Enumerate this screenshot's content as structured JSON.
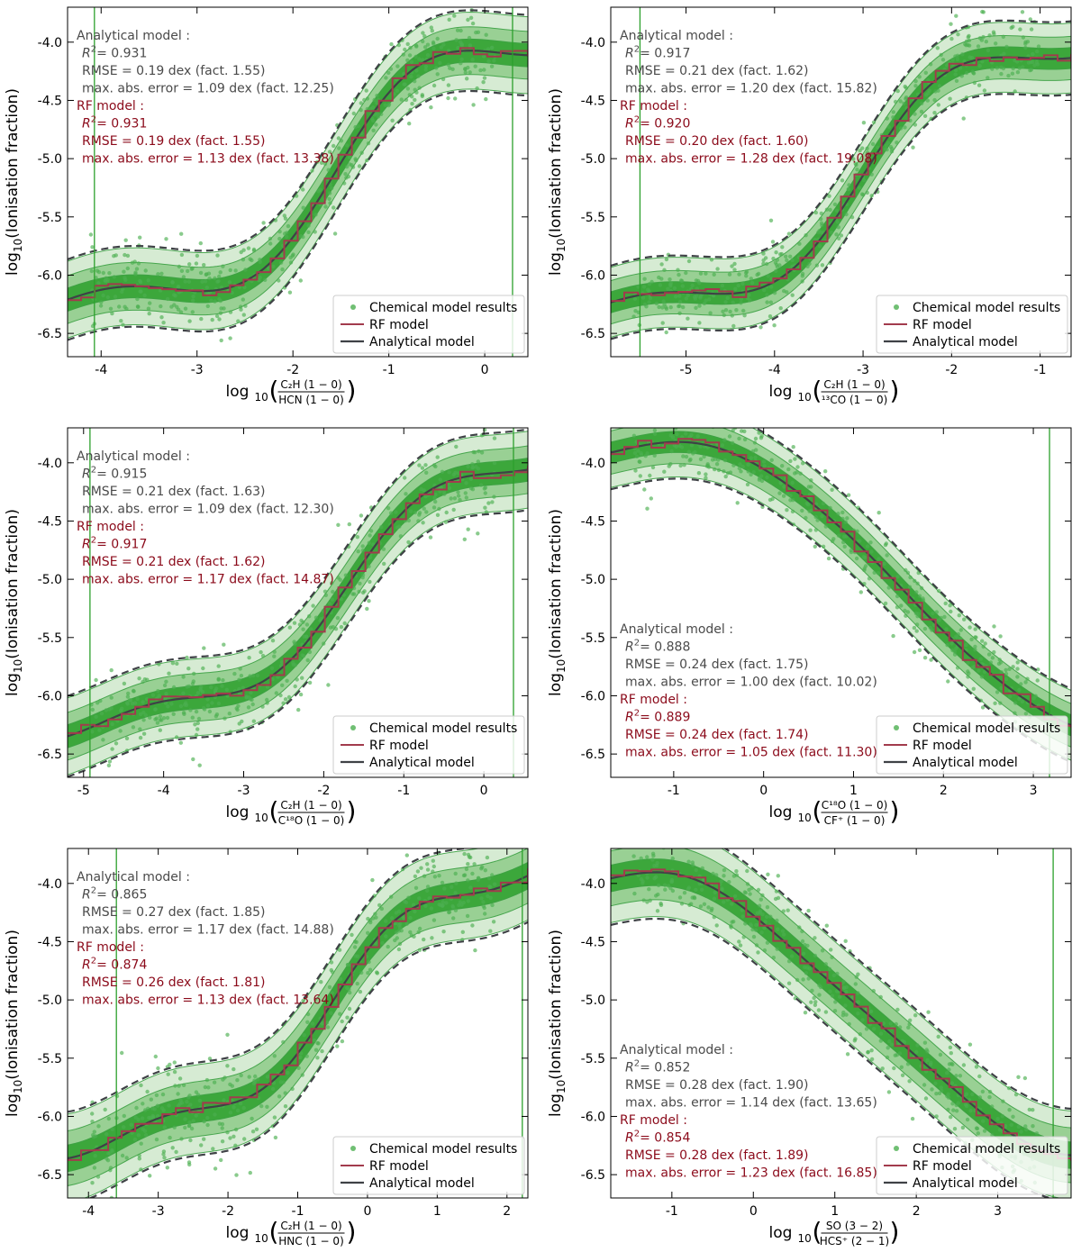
{
  "common": {
    "ylabel_main": "log",
    "ylabel_sub": "10",
    "ylabel_rest": "(Ionisation fraction)",
    "xlabel_main": "log",
    "xlabel_sub": "10",
    "legend": [
      "Chemical model results",
      "RF model",
      "Analytical model"
    ],
    "analytical_header": "Analytical model :",
    "rf_header": "RF model :",
    "r2_label": "R",
    "r2_sup": "2",
    "colors": {
      "points": "#4caf50",
      "contour_light": "#cfe8cc",
      "contour_mid": "#8fcc8a",
      "contour_dark": "#2ca02c",
      "rf": "#a23b4d",
      "analytical": "#3f4246",
      "stats_analytical": "#4a4a4a",
      "stats_rf": "#8b0a1a",
      "vline": "#2ca02c"
    }
  },
  "chart_data": [
    {
      "type": "scatter",
      "title": "",
      "xlabel_num": "C₂H (1 − 0)",
      "xlabel_den": "HCN (1 − 0)",
      "xlim": [
        -4.35,
        0.45
      ],
      "ylim": [
        -6.7,
        -3.7
      ],
      "xticks": [
        "-4",
        "-3",
        "-2",
        "-1",
        "0"
      ],
      "xtick_values": [
        -4,
        -3,
        -2,
        -1,
        0
      ],
      "yticks": [
        "-4.0",
        "-4.5",
        "-5.0",
        "-5.5",
        "-6.0",
        "-6.5"
      ],
      "ytick_values": [
        -4.0,
        -4.5,
        -5.0,
        -5.5,
        -6.0,
        -6.5
      ],
      "vlines": [
        -4.07,
        0.29
      ],
      "trend": "up",
      "curve": {
        "L": -6.28,
        "H": -3.93,
        "c": -1.55,
        "w": 0.55,
        "a": 0.14,
        "k": 2.1
      },
      "band": 0.33,
      "stats_pos": "top",
      "analytical": {
        "r2": "= 0.931",
        "rmse": "RMSE  = 0.19 dex (fact. 1.55)",
        "maxerr": "max. abs. error  = 1.09 dex (fact. 12.25)"
      },
      "rf": {
        "r2": "= 0.931",
        "rmse": "RMSE  = 0.19 dex (fact. 1.55)",
        "maxerr": "max. abs. error  = 1.13 dex (fact. 13.38)"
      }
    },
    {
      "type": "scatter",
      "title": "",
      "xlabel_num": "C₂H (1 − 0)",
      "xlabel_den": "¹³CO (1 − 0)",
      "xlim": [
        -5.85,
        -0.65
      ],
      "ylim": [
        -6.7,
        -3.7
      ],
      "xticks": [
        "-5",
        "-4",
        "-3",
        "-2",
        "-1"
      ],
      "xtick_values": [
        -5,
        -4,
        -3,
        -2,
        -1
      ],
      "yticks": [
        "-4.0",
        "-4.5",
        "-5.0",
        "-5.5",
        "-6.0",
        "-6.5"
      ],
      "ytick_values": [
        -4.0,
        -4.5,
        -5.0,
        -5.5,
        -6.0,
        -6.5
      ],
      "vlines": [
        -5.52
      ],
      "trend": "up",
      "curve": {
        "L": -6.32,
        "H": -3.97,
        "c": -3.0,
        "w": 0.6,
        "a": 0.12,
        "k": 2.0
      },
      "band": 0.3,
      "stats_pos": "top",
      "analytical": {
        "r2": "= 0.917",
        "rmse": "RMSE  = 0.21 dex (fact. 1.62)",
        "maxerr": "max. abs. error  = 1.20 dex (fact. 15.82)"
      },
      "rf": {
        "r2": "= 0.920",
        "rmse": "RMSE  = 0.20 dex (fact. 1.60)",
        "maxerr": "max. abs. error  = 1.28 dex (fact. 19.08)"
      }
    },
    {
      "type": "scatter",
      "title": "",
      "xlabel_num": "C₂H (1 − 0)",
      "xlabel_den": "C¹⁸O (1 − 0)",
      "xlim": [
        -5.2,
        0.55
      ],
      "ylim": [
        -6.7,
        -3.7
      ],
      "xticks": [
        "-5",
        "-4",
        "-3",
        "-2",
        "-1",
        "0"
      ],
      "xtick_values": [
        -5,
        -4,
        -3,
        -2,
        -1,
        0
      ],
      "yticks": [
        "-4.0",
        "-4.5",
        "-5.0",
        "-5.5",
        "-6.0",
        "-6.5"
      ],
      "ytick_values": [
        -4.0,
        -4.5,
        -5.0,
        -5.5,
        -6.0,
        -6.5
      ],
      "vlines": [
        -4.92,
        0.37
      ],
      "trend": "up",
      "curve": {
        "L": -6.3,
        "H": -3.8,
        "c": -1.7,
        "w": 0.8,
        "a": 0.12,
        "k": 2.0
      },
      "band": 0.33,
      "stats_pos": "top",
      "analytical": {
        "r2": "= 0.915",
        "rmse": "RMSE  = 0.21 dex (fact. 1.63)",
        "maxerr": "max. abs. error  = 1.09 dex (fact. 12.30)"
      },
      "rf": {
        "r2": "= 0.917",
        "rmse": "RMSE  = 0.21 dex (fact. 1.62)",
        "maxerr": "max. abs. error  = 1.17 dex (fact. 14.87)"
      }
    },
    {
      "type": "scatter",
      "title": "",
      "xlabel_num": "C¹⁸O (1 − 0)",
      "xlabel_den": "CF⁺ (1 − 0)",
      "xlim": [
        -1.7,
        3.42
      ],
      "ylim": [
        -6.7,
        -3.7
      ],
      "xticks": [
        "-1",
        "0",
        "1",
        "2",
        "3"
      ],
      "xtick_values": [
        -1,
        0,
        1,
        2,
        3
      ],
      "yticks": [
        "-4.0",
        "-4.5",
        "-5.0",
        "-5.5",
        "-6.0",
        "-6.5"
      ],
      "ytick_values": [
        -4.0,
        -4.5,
        -5.0,
        -5.5,
        -6.0,
        -6.5
      ],
      "vlines": [
        3.18
      ],
      "trend": "down",
      "curve": {
        "L": -6.3,
        "H": -3.88,
        "c": 1.55,
        "w": 0.6,
        "a": 0.1,
        "k": 2.0
      },
      "band": 0.3,
      "stats_pos": "bottom",
      "analytical": {
        "r2": "= 0.888",
        "rmse": "RMSE  = 0.24 dex (fact. 1.75)",
        "maxerr": "max. abs. error  = 1.00 dex (fact. 10.02)"
      },
      "rf": {
        "r2": "= 0.889",
        "rmse": "RMSE  = 0.24 dex (fact. 1.74)",
        "maxerr": "max. abs. error  = 1.05 dex (fact. 11.30)"
      }
    },
    {
      "type": "scatter",
      "title": "",
      "xlabel_num": "C₂H (1 − 0)",
      "xlabel_den": "HNC (1 − 0)",
      "xlim": [
        -4.3,
        2.3
      ],
      "ylim": [
        -6.7,
        -3.7
      ],
      "xticks": [
        "-4",
        "-3",
        "-2",
        "-1",
        "0",
        "1",
        "2"
      ],
      "xtick_values": [
        -4,
        -3,
        -2,
        -1,
        0,
        1,
        2
      ],
      "yticks": [
        "-4.0",
        "-4.5",
        "-5.0",
        "-5.5",
        "-6.0",
        "-6.5"
      ],
      "ytick_values": [
        -4.0,
        -4.5,
        -5.0,
        -5.5,
        -6.0,
        -6.5
      ],
      "vlines": [
        -3.6,
        2.22
      ],
      "trend": "up",
      "curve": {
        "L": -6.28,
        "H": -3.75,
        "c": -0.5,
        "w": 0.9,
        "a": 0.12,
        "k": 2.0
      },
      "band": 0.38,
      "stats_pos": "top",
      "analytical": {
        "r2": "= 0.865",
        "rmse": "RMSE  = 0.27 dex (fact. 1.85)",
        "maxerr": "max. abs. error  = 1.17 dex (fact. 14.88)"
      },
      "rf": {
        "r2": "= 0.874",
        "rmse": "RMSE  = 0.26 dex (fact. 1.81)",
        "maxerr": "max. abs. error  = 1.13 dex (fact. 13.64)"
      }
    },
    {
      "type": "scatter",
      "title": "",
      "xlabel_num": "SO (3 − 2)",
      "xlabel_den": "HCS⁺ (2 − 1)",
      "xlim": [
        -1.75,
        3.9
      ],
      "ylim": [
        -6.7,
        -3.7
      ],
      "xticks": [
        "-1",
        "0",
        "1",
        "2",
        "3"
      ],
      "xtick_values": [
        -1,
        0,
        1,
        2,
        3
      ],
      "yticks": [
        "-4.0",
        "-4.5",
        "-5.0",
        "-5.5",
        "-6.0",
        "-6.5"
      ],
      "ytick_values": [
        -4.0,
        -4.5,
        -5.0,
        -5.5,
        -6.0,
        -6.5
      ],
      "vlines": [
        3.68
      ],
      "trend": "down",
      "curve": {
        "L": -6.32,
        "H": -3.92,
        "c": 1.4,
        "w": 0.75,
        "a": 0.1,
        "k": 2.0
      },
      "band": 0.38,
      "stats_pos": "bottom",
      "analytical": {
        "r2": "= 0.852",
        "rmse": "RMSE  = 0.28 dex (fact. 1.90)",
        "maxerr": "max. abs. error  = 1.14 dex (fact. 13.65)"
      },
      "rf": {
        "r2": "= 0.854",
        "rmse": "RMSE  = 0.28 dex (fact. 1.89)",
        "maxerr": "max. abs. error  = 1.23 dex (fact. 16.85)"
      }
    }
  ]
}
